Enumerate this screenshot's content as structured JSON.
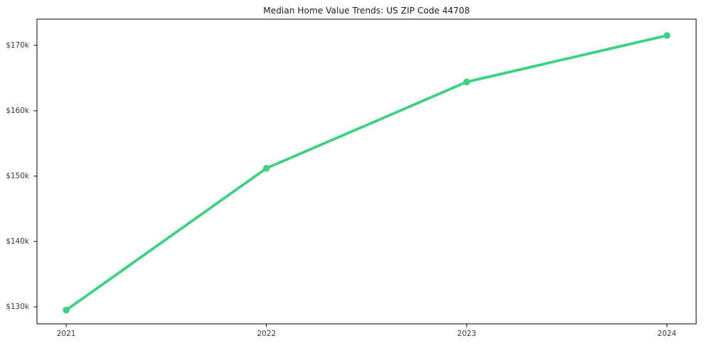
{
  "chart_data": {
    "type": "line",
    "title": "Median Home Value Trends: US ZIP Code 44708",
    "x": [
      2021,
      2022,
      2023,
      2024
    ],
    "x_labels": [
      "2021",
      "2022",
      "2023",
      "2024"
    ],
    "series": [
      {
        "name": "Median Home Value",
        "values": [
          129500,
          151200,
          164400,
          171500
        ]
      }
    ],
    "y_ticks": [
      {
        "value": 130000,
        "label": "$130k"
      },
      {
        "value": 140000,
        "label": "$140k"
      },
      {
        "value": 150000,
        "label": "$150k"
      },
      {
        "value": 160000,
        "label": "$160k"
      },
      {
        "value": 170000,
        "label": "$170k"
      }
    ],
    "xlim": [
      2020.854,
      2024.146
    ],
    "ylim": [
      127400,
      174000
    ],
    "grid": false,
    "legend": "none",
    "line_color": "#3cd282",
    "marker": "circle",
    "axis_color": "#000000",
    "tick_label_color": "#3a3a3a"
  }
}
